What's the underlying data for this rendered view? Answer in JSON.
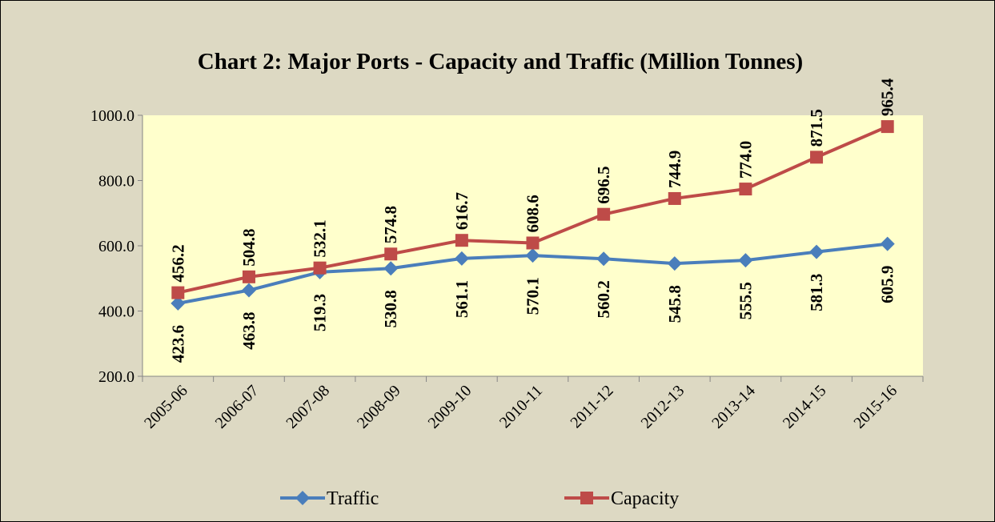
{
  "chart_data": {
    "type": "line",
    "title": "Chart 2: Major Ports - Capacity and Traffic (Million Tonnes)",
    "categories": [
      "2005-06",
      "2006-07",
      "2007-08",
      "2008-09",
      "2009-10",
      "2010-11",
      "2011-12",
      "2012-13",
      "2013-14",
      "2014-15",
      "2015-16"
    ],
    "series": [
      {
        "name": "Traffic",
        "color": "#4a7ebb",
        "marker": "diamond",
        "label_position": "below",
        "values": [
          423.6,
          463.8,
          519.3,
          530.8,
          561.1,
          570.1,
          560.2,
          545.8,
          555.5,
          581.3,
          605.9
        ],
        "value_labels": [
          "423.6",
          "463.8",
          "519.3",
          "530.8",
          "561.1",
          "570.1",
          "560.2",
          "545.8",
          "555.5",
          "581.3",
          "605.9"
        ]
      },
      {
        "name": "Capacity",
        "color": "#be4b48",
        "marker": "square",
        "label_position": "above",
        "values": [
          456.2,
          504.8,
          532.1,
          574.8,
          616.7,
          608.6,
          696.5,
          744.9,
          774.0,
          871.5,
          965.4
        ],
        "value_labels": [
          "456.2",
          "504.8",
          "532.1",
          "574.8",
          "616.7",
          "608.6",
          "696.5",
          "744.9",
          "774.0",
          "871.5",
          "965.4"
        ]
      }
    ],
    "ylim": [
      200,
      1000
    ],
    "yticks": [
      {
        "value": 200,
        "label": "200.0"
      },
      {
        "value": 400,
        "label": "400.0"
      },
      {
        "value": 600,
        "label": "600.0"
      },
      {
        "value": 800,
        "label": "800.0"
      },
      {
        "value": 1000,
        "label": "1000.0"
      }
    ],
    "legend": "bottom"
  }
}
